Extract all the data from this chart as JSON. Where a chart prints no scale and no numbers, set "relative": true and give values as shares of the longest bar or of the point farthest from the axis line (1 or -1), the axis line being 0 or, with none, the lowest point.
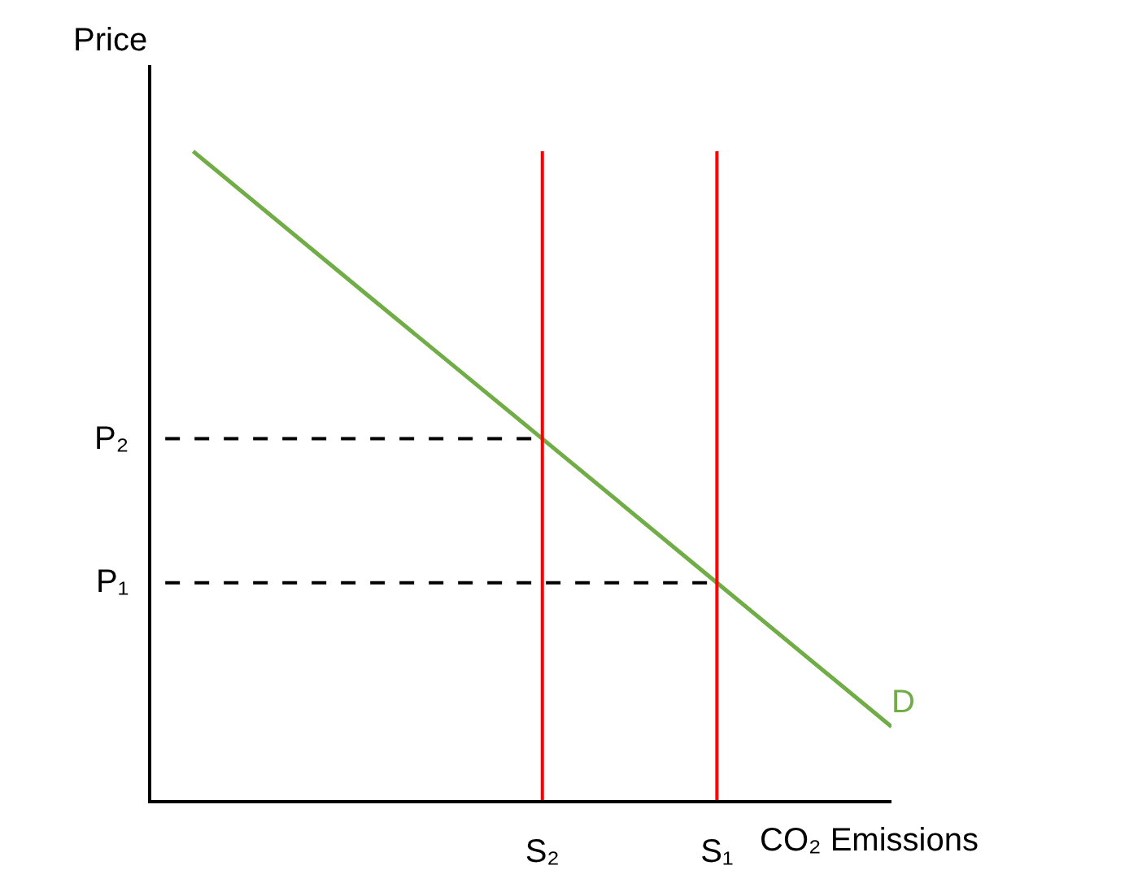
{
  "chart_data": {
    "type": "line",
    "relative": true,
    "xlabel": "CO₂ Emissions",
    "ylabel": "Price",
    "categories": [
      null,
      null,
      "S₂",
      "S₁",
      null
    ],
    "series": [
      {
        "name": "D",
        "color": "#70ad47",
        "values": [
          1,
          0.778,
          0.557,
          0.335,
          0.113
        ]
      }
    ],
    "ref_lines": [
      {
        "axis": "x",
        "value": "S₂",
        "color": "#ff0000",
        "line_style": "solid"
      },
      {
        "axis": "x",
        "value": "S₁",
        "color": "#ff0000",
        "line_style": "solid"
      },
      {
        "axis": "y",
        "value": 0.557,
        "label": "P₂",
        "color": "#000000",
        "line_style": "dashed"
      },
      {
        "axis": "y",
        "value": 0.335,
        "label": "P₁",
        "color": "#000000",
        "line_style": "dashed"
      }
    ],
    "legend": false,
    "marker": "none",
    "line_style": "solid"
  }
}
